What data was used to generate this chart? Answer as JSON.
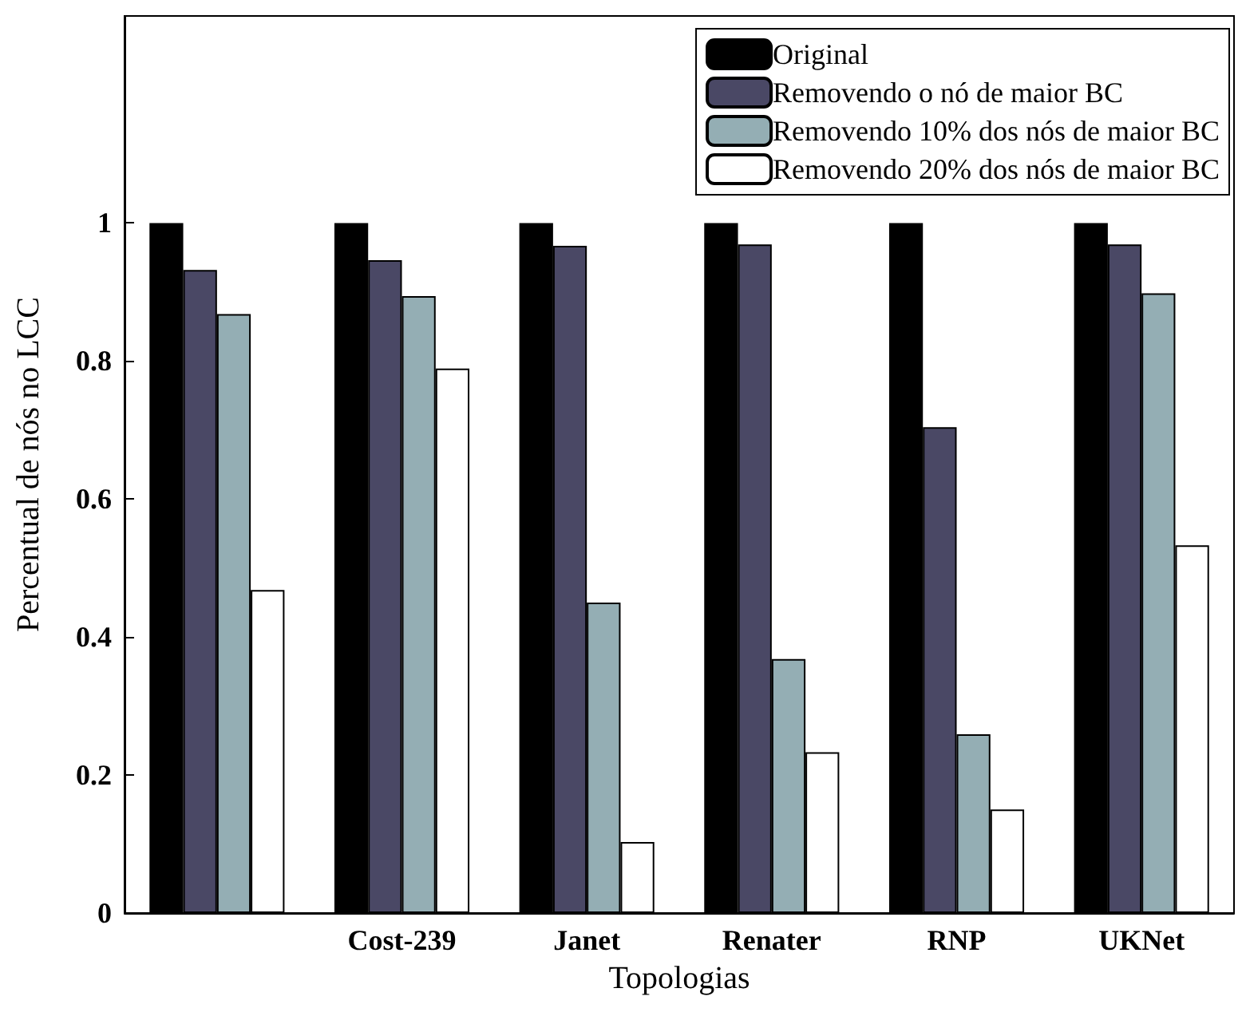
{
  "chart_data": {
    "type": "bar",
    "xlabel": "Topologias",
    "ylabel": "Percentual de nós no LCC",
    "categories": [
      null,
      "Cost-239",
      "Janet",
      "Renater",
      "RNP",
      "UKNet"
    ],
    "series": [
      {
        "name": "Original",
        "color": "#000000",
        "values": [
          1,
          1,
          1,
          1,
          1,
          1
        ]
      },
      {
        "name": "Removendo o nó de maior BC",
        "color": "#4a4865",
        "values": [
          0.932,
          0.946,
          0.967,
          0.969,
          0.704,
          0.969
        ]
      },
      {
        "name": "Removendo 10% dos nós de maior BC",
        "color": "#94aeb4",
        "values": [
          0.868,
          0.894,
          0.45,
          0.368,
          0.259,
          0.898
        ]
      },
      {
        "name": "Removendo 20% dos nós de maior BC",
        "color": "#ffffff",
        "values": [
          0.468,
          0.789,
          0.103,
          0.233,
          0.15,
          0.533
        ]
      }
    ],
    "ylim": [
      0,
      1.3
    ],
    "yticks": [
      0,
      0.2,
      0.4,
      0.6,
      0.8,
      1
    ],
    "grid": false,
    "legend": "top right"
  }
}
